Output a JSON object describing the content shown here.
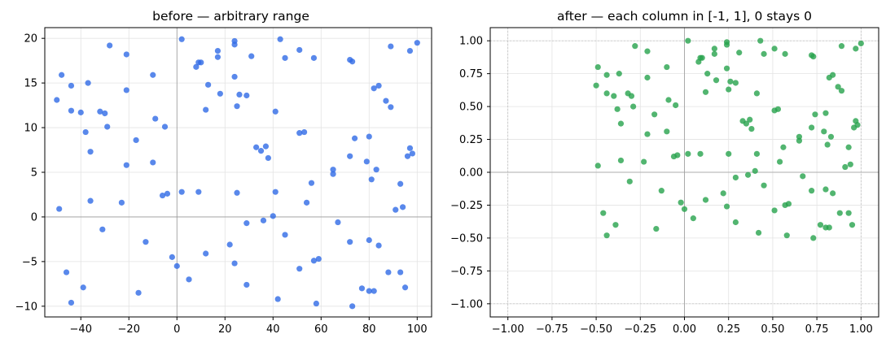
{
  "chart_data": [
    {
      "type": "scatter",
      "title": "before — arbitrary range",
      "xlabel": "",
      "ylabel": "",
      "xlim": [
        -55,
        106
      ],
      "ylim": [
        -11.2,
        21.2
      ],
      "xticks": [
        -40,
        -20,
        0,
        20,
        40,
        60,
        80,
        100
      ],
      "yticks": [
        -10,
        -5,
        0,
        5,
        10,
        15,
        20
      ],
      "grid": true,
      "zero_lines": true,
      "color": "#2f6ae6",
      "points": [
        [
          -50,
          13.1
        ],
        [
          -48,
          15.9
        ],
        [
          -44,
          14.7
        ],
        [
          -44,
          11.9
        ],
        [
          -40,
          11.7
        ],
        [
          -37,
          15.0
        ],
        [
          -38,
          9.5
        ],
        [
          -36,
          7.3
        ],
        [
          -32,
          11.8
        ],
        [
          -30,
          11.6
        ],
        [
          -28,
          19.2
        ],
        [
          -29,
          10.1
        ],
        [
          -21,
          18.2
        ],
        [
          -21,
          14.2
        ],
        [
          -17,
          8.6
        ],
        [
          -21,
          5.8
        ],
        [
          -23,
          1.6
        ],
        [
          -36,
          1.8
        ],
        [
          -49,
          0.9
        ],
        [
          -31,
          -1.4
        ],
        [
          -46,
          -6.2
        ],
        [
          -39,
          -7.9
        ],
        [
          -44,
          -9.6
        ],
        [
          -16,
          -8.5
        ],
        [
          -13,
          -2.8
        ],
        [
          -10,
          15.9
        ],
        [
          -9,
          11.0
        ],
        [
          -10,
          6.1
        ],
        [
          -5,
          10.1
        ],
        [
          -6,
          2.4
        ],
        [
          -4,
          2.6
        ],
        [
          -2,
          -4.5
        ],
        [
          0,
          -5.5
        ],
        [
          5,
          -7.0
        ],
        [
          2,
          19.9
        ],
        [
          9,
          17.3
        ],
        [
          8,
          16.8
        ],
        [
          10,
          17.3
        ],
        [
          17,
          18.6
        ],
        [
          17,
          17.9
        ],
        [
          13,
          14.8
        ],
        [
          12,
          12.0
        ],
        [
          18,
          13.8
        ],
        [
          24,
          19.7
        ],
        [
          24,
          19.3
        ],
        [
          24,
          15.7
        ],
        [
          26,
          13.7
        ],
        [
          25,
          12.4
        ],
        [
          29,
          13.6
        ],
        [
          31,
          18.0
        ],
        [
          33,
          7.8
        ],
        [
          35,
          7.4
        ],
        [
          37,
          7.9
        ],
        [
          38,
          6.6
        ],
        [
          41,
          11.8
        ],
        [
          43,
          19.9
        ],
        [
          45,
          17.8
        ],
        [
          51,
          18.7
        ],
        [
          51,
          9.4
        ],
        [
          53,
          9.5
        ],
        [
          57,
          17.8
        ],
        [
          2,
          2.8
        ],
        [
          9,
          2.8
        ],
        [
          25,
          2.7
        ],
        [
          41,
          2.8
        ],
        [
          54,
          1.6
        ],
        [
          36,
          -0.4
        ],
        [
          29,
          -0.7
        ],
        [
          40,
          0.1
        ],
        [
          45,
          -2.0
        ],
        [
          22,
          -3.1
        ],
        [
          24,
          -5.2
        ],
        [
          12,
          -4.1
        ],
        [
          29,
          -7.6
        ],
        [
          42,
          -9.2
        ],
        [
          51,
          -5.8
        ],
        [
          57,
          -4.9
        ],
        [
          59,
          -4.7
        ],
        [
          58,
          -9.7
        ],
        [
          56,
          3.8
        ],
        [
          65,
          5.3
        ],
        [
          65,
          4.8
        ],
        [
          72,
          17.6
        ],
        [
          73,
          17.4
        ],
        [
          74,
          8.8
        ],
        [
          72,
          6.8
        ],
        [
          79,
          6.2
        ],
        [
          80,
          9.0
        ],
        [
          81,
          4.2
        ],
        [
          83,
          5.3
        ],
        [
          82,
          14.4
        ],
        [
          84,
          14.7
        ],
        [
          87,
          13.0
        ],
        [
          89,
          12.3
        ],
        [
          89,
          19.1
        ],
        [
          97,
          18.6
        ],
        [
          100,
          19.5
        ],
        [
          96,
          6.8
        ],
        [
          97,
          7.7
        ],
        [
          98,
          7.1
        ],
        [
          91,
          0.8
        ],
        [
          94,
          1.1
        ],
        [
          93,
          3.7
        ],
        [
          67,
          -0.6
        ],
        [
          72,
          -2.8
        ],
        [
          80,
          -2.6
        ],
        [
          84,
          -3.2
        ],
        [
          77,
          -8.0
        ],
        [
          80,
          -8.3
        ],
        [
          82,
          -8.3
        ],
        [
          88,
          -6.2
        ],
        [
          93,
          -6.2
        ],
        [
          95,
          -7.9
        ],
        [
          73,
          -10.0
        ]
      ]
    },
    {
      "type": "scatter",
      "title": "after — each column in [-1, 1], 0 stays 0",
      "xlabel": "",
      "ylabel": "",
      "xlim": [
        -1.1,
        1.1
      ],
      "ylim": [
        -1.1,
        1.1
      ],
      "xticks": [
        -1.0,
        -0.75,
        -0.5,
        -0.25,
        0.0,
        0.25,
        0.5,
        0.75,
        1.0
      ],
      "yticks": [
        -1.0,
        -0.75,
        -0.5,
        -0.25,
        0.0,
        0.25,
        0.5,
        0.75,
        1.0
      ],
      "grid": true,
      "zero_lines": true,
      "color": "#27a24c",
      "points": [
        [
          -0.5,
          0.66
        ],
        [
          -0.49,
          0.8
        ],
        [
          -0.44,
          0.74
        ],
        [
          -0.44,
          0.6
        ],
        [
          -0.4,
          0.58
        ],
        [
          -0.37,
          0.75
        ],
        [
          -0.38,
          0.48
        ],
        [
          -0.36,
          0.37
        ],
        [
          -0.32,
          0.6
        ],
        [
          -0.3,
          0.58
        ],
        [
          -0.28,
          0.96
        ],
        [
          -0.29,
          0.5
        ],
        [
          -0.21,
          0.92
        ],
        [
          -0.21,
          0.72
        ],
        [
          -0.17,
          0.44
        ],
        [
          -0.21,
          0.29
        ],
        [
          -0.23,
          0.08
        ],
        [
          -0.36,
          0.09
        ],
        [
          -0.49,
          0.05
        ],
        [
          -0.31,
          -0.07
        ],
        [
          -0.46,
          -0.31
        ],
        [
          -0.39,
          -0.4
        ],
        [
          -0.44,
          -0.48
        ],
        [
          -0.16,
          -0.43
        ],
        [
          -0.13,
          -0.14
        ],
        [
          -0.1,
          0.8
        ],
        [
          -0.09,
          0.55
        ],
        [
          -0.1,
          0.31
        ],
        [
          -0.05,
          0.51
        ],
        [
          -0.06,
          0.12
        ],
        [
          -0.04,
          0.13
        ],
        [
          -0.02,
          -0.23
        ],
        [
          0.0,
          -0.28
        ],
        [
          0.05,
          -0.35
        ],
        [
          0.02,
          1.0
        ],
        [
          0.09,
          0.87
        ],
        [
          0.08,
          0.84
        ],
        [
          0.1,
          0.87
        ],
        [
          0.17,
          0.94
        ],
        [
          0.17,
          0.9
        ],
        [
          0.13,
          0.75
        ],
        [
          0.12,
          0.61
        ],
        [
          0.18,
          0.7
        ],
        [
          0.24,
          0.99
        ],
        [
          0.24,
          0.97
        ],
        [
          0.24,
          0.79
        ],
        [
          0.26,
          0.69
        ],
        [
          0.25,
          0.63
        ],
        [
          0.29,
          0.68
        ],
        [
          0.31,
          0.91
        ],
        [
          0.33,
          0.39
        ],
        [
          0.35,
          0.37
        ],
        [
          0.37,
          0.4
        ],
        [
          0.38,
          0.33
        ],
        [
          0.41,
          0.6
        ],
        [
          0.43,
          1.0
        ],
        [
          0.45,
          0.9
        ],
        [
          0.51,
          0.94
        ],
        [
          0.51,
          0.47
        ],
        [
          0.53,
          0.48
        ],
        [
          0.57,
          0.9
        ],
        [
          0.02,
          0.14
        ],
        [
          0.09,
          0.14
        ],
        [
          0.25,
          0.14
        ],
        [
          0.41,
          0.14
        ],
        [
          0.54,
          0.08
        ],
        [
          0.36,
          -0.02
        ],
        [
          0.29,
          -0.04
        ],
        [
          0.4,
          0.01
        ],
        [
          0.45,
          -0.1
        ],
        [
          0.22,
          -0.16
        ],
        [
          0.24,
          -0.26
        ],
        [
          0.12,
          -0.21
        ],
        [
          0.29,
          -0.38
        ],
        [
          0.42,
          -0.46
        ],
        [
          0.51,
          -0.29
        ],
        [
          0.57,
          -0.25
        ],
        [
          0.59,
          -0.24
        ],
        [
          0.58,
          -0.48
        ],
        [
          0.56,
          0.19
        ],
        [
          0.65,
          0.27
        ],
        [
          0.65,
          0.24
        ],
        [
          0.72,
          0.89
        ],
        [
          0.73,
          0.88
        ],
        [
          0.74,
          0.44
        ],
        [
          0.72,
          0.34
        ],
        [
          0.79,
          0.31
        ],
        [
          0.8,
          0.45
        ],
        [
          0.81,
          0.21
        ],
        [
          0.83,
          0.27
        ],
        [
          0.82,
          0.72
        ],
        [
          0.84,
          0.74
        ],
        [
          0.87,
          0.65
        ],
        [
          0.89,
          0.62
        ],
        [
          0.89,
          0.96
        ],
        [
          0.97,
          0.94
        ],
        [
          1.0,
          0.98
        ],
        [
          0.96,
          0.34
        ],
        [
          0.97,
          0.39
        ],
        [
          0.98,
          0.36
        ],
        [
          0.91,
          0.04
        ],
        [
          0.94,
          0.06
        ],
        [
          0.93,
          0.19
        ],
        [
          0.67,
          -0.03
        ],
        [
          0.72,
          -0.14
        ],
        [
          0.8,
          -0.13
        ],
        [
          0.84,
          -0.16
        ],
        [
          0.77,
          -0.4
        ],
        [
          0.8,
          -0.42
        ],
        [
          0.82,
          -0.42
        ],
        [
          0.88,
          -0.31
        ],
        [
          0.93,
          -0.31
        ],
        [
          0.95,
          -0.4
        ],
        [
          0.73,
          -0.5
        ]
      ]
    }
  ]
}
